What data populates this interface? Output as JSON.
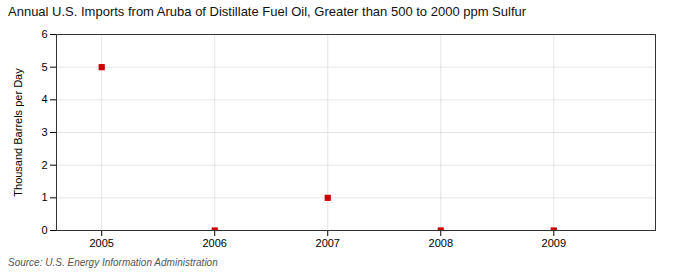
{
  "chart_data": {
    "type": "scatter",
    "title": "Annual U.S. Imports from Aruba of Distillate Fuel Oil, Greater than 500 to 2000 ppm Sulfur",
    "ylabel": "Thousand Barrels per Day",
    "source": "Source: U.S. Energy Information Administration",
    "x": [
      2005,
      2006,
      2007,
      2008,
      2009
    ],
    "values": [
      5,
      0,
      1,
      0,
      0
    ],
    "xlim": [
      2004.6,
      2009.9
    ],
    "xticks": [
      2005,
      2006,
      2007,
      2008,
      2009
    ],
    "ylim": [
      0,
      6
    ],
    "yticks": [
      0,
      1,
      2,
      3,
      4,
      5,
      6
    ],
    "color": "#CC0000",
    "marker": "square",
    "grid": true
  }
}
